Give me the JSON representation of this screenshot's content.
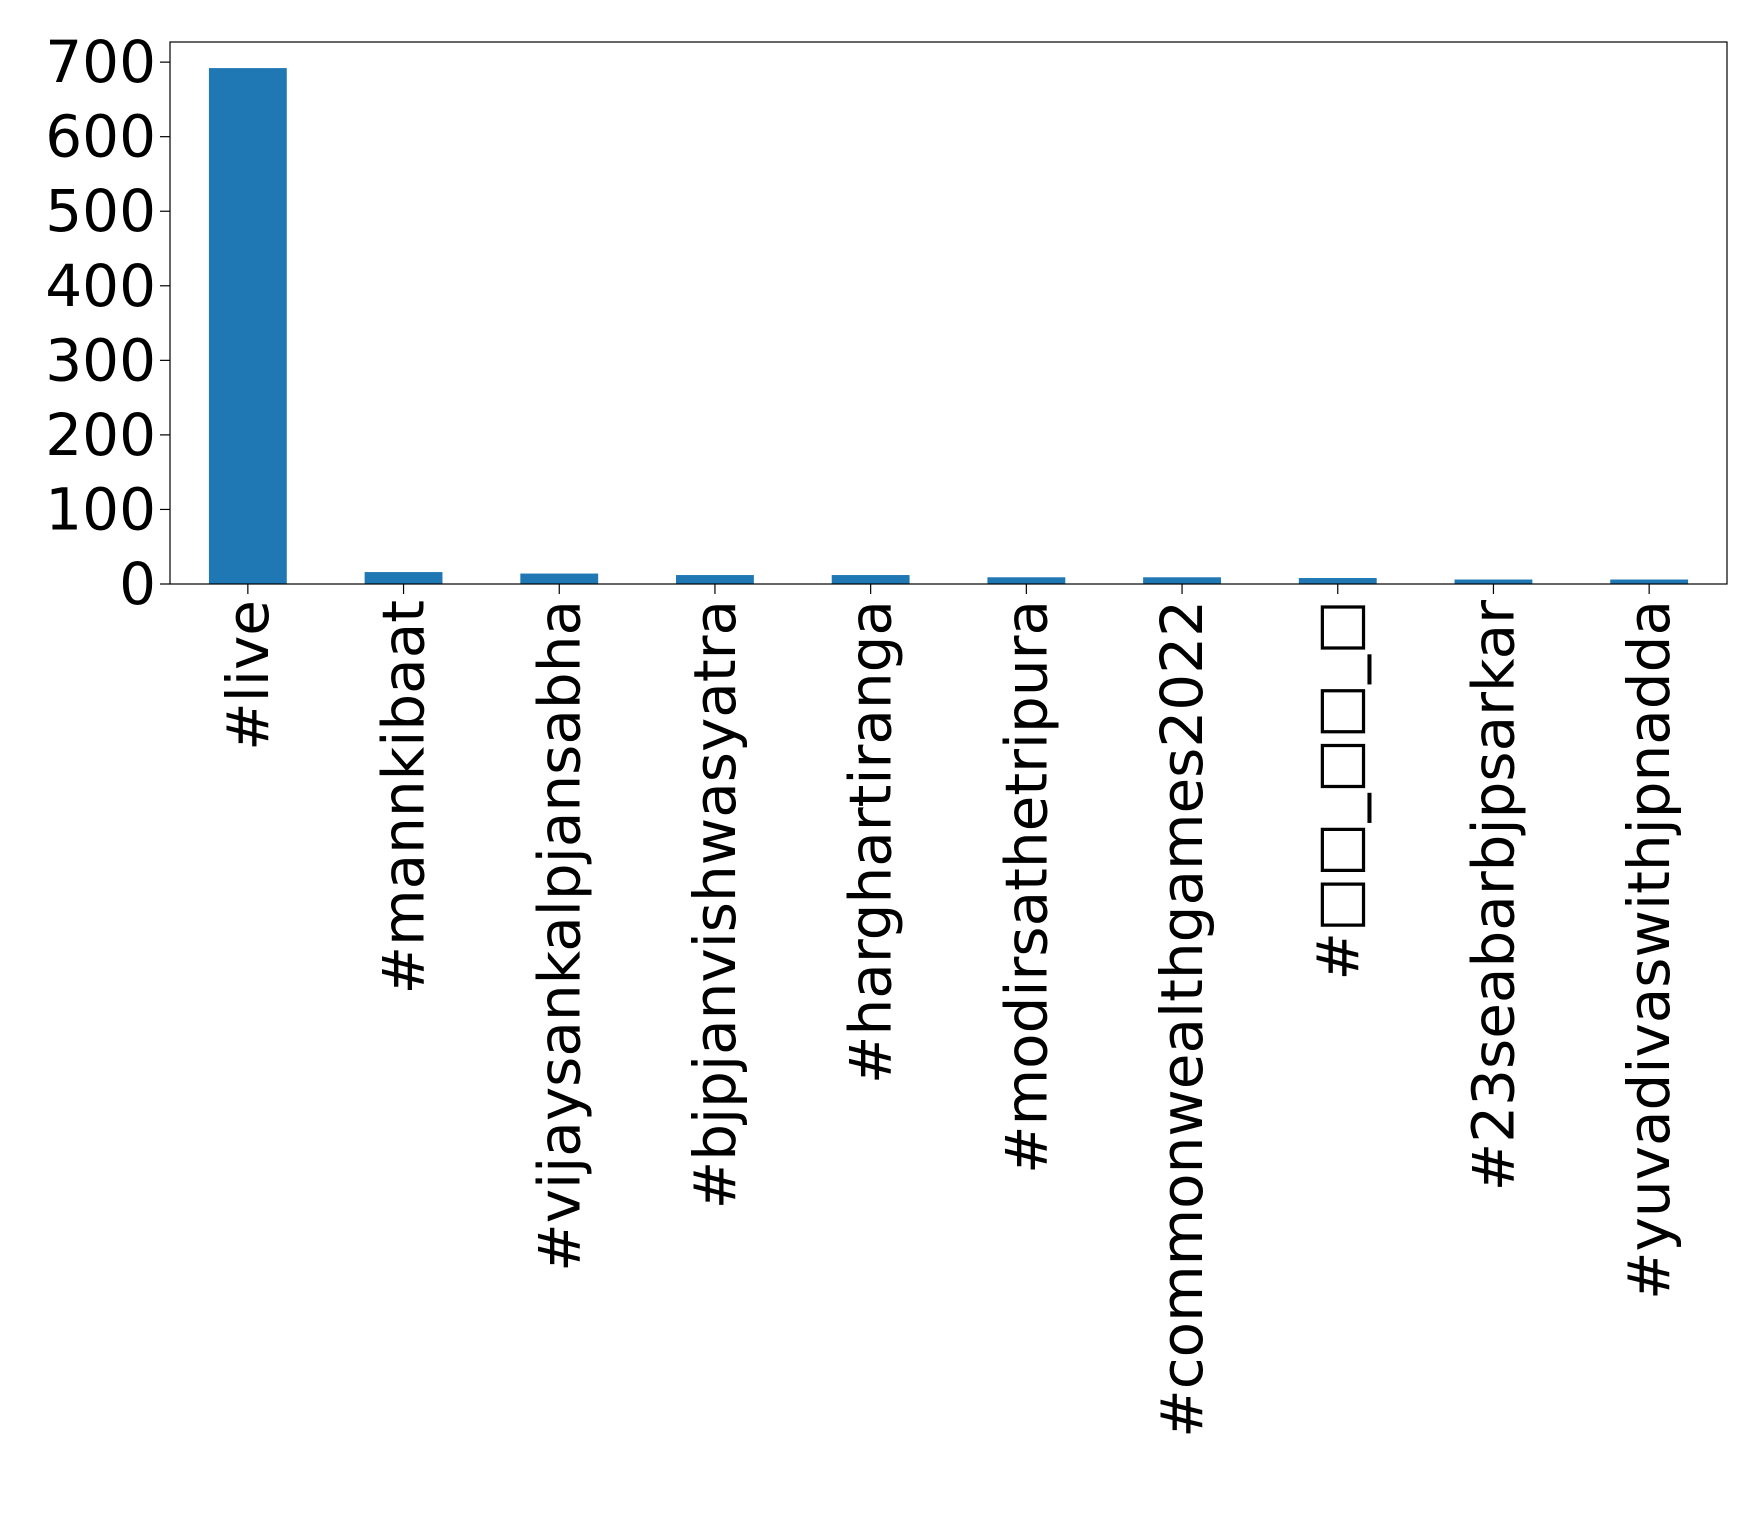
{
  "chart_data": {
    "type": "bar",
    "title": "",
    "xlabel": "",
    "ylabel": "",
    "categories": [
      "#live",
      "#mannkibaat",
      "#vijaysankalpjansabha",
      "#bjpjanvishwasyatra",
      "#harghartiranga",
      "#modirsathetripura",
      "#commonwealthgames2022",
      "#□□_□□_□",
      "#23seabarbjpsarkar",
      "#yuvadivaswithjpnadda"
    ],
    "values": [
      692,
      16,
      14,
      12,
      12,
      9,
      9,
      8,
      6,
      6
    ],
    "ylim": [
      0,
      727
    ],
    "yticks": [
      0,
      100,
      200,
      300,
      400,
      500,
      600,
      700
    ],
    "bar_color": "#1f77b4",
    "grid": false,
    "legend": "none"
  }
}
